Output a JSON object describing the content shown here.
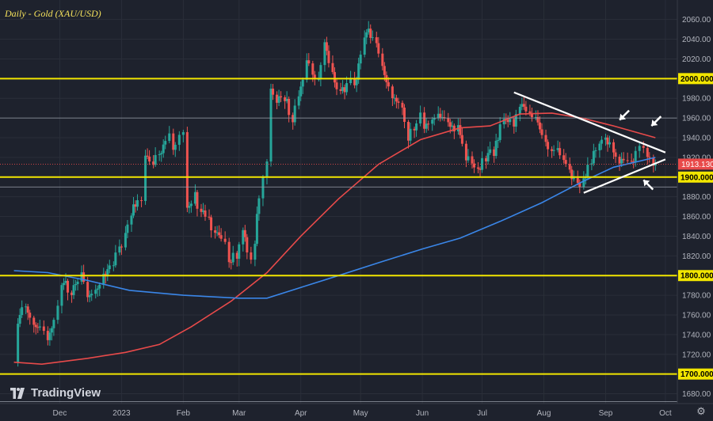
{
  "chart_data": {
    "type": "candlestick",
    "title": "Daily - Gold (XAU/USD)",
    "branding": "TradingView",
    "ylim": [
      1670,
      2075
    ],
    "y_ticks": [
      1680,
      1700,
      1720,
      1740,
      1760,
      1780,
      1800,
      1820,
      1840,
      1860,
      1880,
      1900,
      1920,
      1940,
      1960,
      1980,
      2000,
      2020,
      2040,
      2060
    ],
    "x_labels": [
      {
        "label": "Dec",
        "date": "2022-12-01"
      },
      {
        "label": "2023",
        "date": "2023-01-01"
      },
      {
        "label": "Feb",
        "date": "2023-02-01"
      },
      {
        "label": "Mar",
        "date": "2023-03-01"
      },
      {
        "label": "Apr",
        "date": "2023-04-01"
      },
      {
        "label": "May",
        "date": "2023-05-01"
      },
      {
        "label": "Jun",
        "date": "2023-06-01"
      },
      {
        "label": "Jul",
        "date": "2023-07-01"
      },
      {
        "label": "Aug",
        "date": "2023-08-01"
      },
      {
        "label": "Sep",
        "date": "2023-09-01"
      },
      {
        "label": "Oct",
        "date": "2023-10-01"
      }
    ],
    "price_path": [
      [
        "2022-11-08",
        1712
      ],
      [
        "2022-11-10",
        1750
      ],
      [
        "2022-11-14",
        1772
      ],
      [
        "2022-11-18",
        1755
      ],
      [
        "2022-11-23",
        1742
      ],
      [
        "2022-11-25",
        1735
      ],
      [
        "2022-11-30",
        1768
      ],
      [
        "2022-12-02",
        1795
      ],
      [
        "2022-12-07",
        1785
      ],
      [
        "2022-12-12",
        1800
      ],
      [
        "2022-12-15",
        1778
      ],
      [
        "2022-12-19",
        1785
      ],
      [
        "2022-12-23",
        1800
      ],
      [
        "2022-12-28",
        1812
      ],
      [
        "2023-01-03",
        1840
      ],
      [
        "2023-01-06",
        1865
      ],
      [
        "2023-01-11",
        1878
      ],
      [
        "2023-01-13",
        1920
      ],
      [
        "2023-01-17",
        1910
      ],
      [
        "2023-01-20",
        1925
      ],
      [
        "2023-01-25",
        1940
      ],
      [
        "2023-01-27",
        1928
      ],
      [
        "2023-01-30",
        1945
      ],
      [
        "2023-02-01",
        1950
      ],
      [
        "2023-02-03",
        1868
      ],
      [
        "2023-02-07",
        1880
      ],
      [
        "2023-02-10",
        1865
      ],
      [
        "2023-02-14",
        1855
      ],
      [
        "2023-02-17",
        1845
      ],
      [
        "2023-02-22",
        1830
      ],
      [
        "2023-02-24",
        1815
      ],
      [
        "2023-02-28",
        1822
      ],
      [
        "2023-03-03",
        1850
      ],
      [
        "2023-03-07",
        1815
      ],
      [
        "2023-03-09",
        1835
      ],
      [
        "2023-03-13",
        1905
      ],
      [
        "2023-03-15",
        1920
      ],
      [
        "2023-03-17",
        1990
      ],
      [
        "2023-03-20",
        1978
      ],
      [
        "2023-03-24",
        1982
      ],
      [
        "2023-03-28",
        1960
      ],
      [
        "2023-03-31",
        1980
      ],
      [
        "2023-04-04",
        2015
      ],
      [
        "2023-04-07",
        2008
      ],
      [
        "2023-04-10",
        1995
      ],
      [
        "2023-04-13",
        2040
      ],
      [
        "2023-04-17",
        2002
      ],
      [
        "2023-04-21",
        1985
      ],
      [
        "2023-04-26",
        1995
      ],
      [
        "2023-04-28",
        1990
      ],
      [
        "2023-05-03",
        2038
      ],
      [
        "2023-05-04",
        2050
      ],
      [
        "2023-05-09",
        2035
      ],
      [
        "2023-05-12",
        2012
      ],
      [
        "2023-05-17",
        1985
      ],
      [
        "2023-05-22",
        1975
      ],
      [
        "2023-05-25",
        1942
      ],
      [
        "2023-05-31",
        1962
      ],
      [
        "2023-06-02",
        1948
      ],
      [
        "2023-06-06",
        1962
      ],
      [
        "2023-06-09",
        1960
      ],
      [
        "2023-06-14",
        1955
      ],
      [
        "2023-06-19",
        1950
      ],
      [
        "2023-06-23",
        1920
      ],
      [
        "2023-06-29",
        1908
      ],
      [
        "2023-07-03",
        1920
      ],
      [
        "2023-07-07",
        1925
      ],
      [
        "2023-07-12",
        1958
      ],
      [
        "2023-07-17",
        1955
      ],
      [
        "2023-07-20",
        1975
      ],
      [
        "2023-07-25",
        1962
      ],
      [
        "2023-07-28",
        1958
      ],
      [
        "2023-08-02",
        1935
      ],
      [
        "2023-08-08",
        1925
      ],
      [
        "2023-08-14",
        1905
      ],
      [
        "2023-08-18",
        1890
      ],
      [
        "2023-08-21",
        1895
      ],
      [
        "2023-08-25",
        1915
      ],
      [
        "2023-08-29",
        1938
      ],
      [
        "2023-09-01",
        1942
      ],
      [
        "2023-09-05",
        1928
      ],
      [
        "2023-09-08",
        1918
      ],
      [
        "2023-09-12",
        1912
      ],
      [
        "2023-09-14",
        1912
      ],
      [
        "2023-09-18",
        1935
      ],
      [
        "2023-09-20",
        1930
      ],
      [
        "2023-09-22",
        1925
      ],
      [
        "2023-09-25",
        1915
      ],
      [
        "2023-09-26",
        1913.13
      ]
    ],
    "moving_averages": [
      {
        "color": "#e84a4a",
        "points": [
          [
            "2022-11-08",
            1712
          ],
          [
            "2022-11-22",
            1710
          ],
          [
            "2022-12-15",
            1716
          ],
          [
            "2023-01-03",
            1722
          ],
          [
            "2023-01-20",
            1730
          ],
          [
            "2023-02-05",
            1748
          ],
          [
            "2023-02-25",
            1774
          ],
          [
            "2023-03-15",
            1803
          ],
          [
            "2023-04-01",
            1840
          ],
          [
            "2023-04-20",
            1878
          ],
          [
            "2023-05-10",
            1913
          ],
          [
            "2023-05-31",
            1938
          ],
          [
            "2023-06-20",
            1950
          ],
          [
            "2023-07-05",
            1952
          ],
          [
            "2023-07-20",
            1964
          ],
          [
            "2023-08-05",
            1965
          ],
          [
            "2023-08-20",
            1960
          ],
          [
            "2023-09-05",
            1952
          ],
          [
            "2023-09-26",
            1940
          ]
        ]
      },
      {
        "color": "#3a86e8",
        "points": [
          [
            "2022-11-08",
            1805
          ],
          [
            "2022-11-25",
            1803
          ],
          [
            "2022-12-15",
            1795
          ],
          [
            "2023-01-05",
            1785
          ],
          [
            "2023-02-01",
            1780
          ],
          [
            "2023-03-01",
            1777
          ],
          [
            "2023-03-15",
            1777
          ],
          [
            "2023-04-01",
            1788
          ],
          [
            "2023-04-20",
            1800
          ],
          [
            "2023-05-10",
            1813
          ],
          [
            "2023-06-01",
            1827
          ],
          [
            "2023-06-20",
            1838
          ],
          [
            "2023-07-10",
            1855
          ],
          [
            "2023-07-31",
            1874
          ],
          [
            "2023-08-20",
            1895
          ],
          [
            "2023-09-05",
            1910
          ],
          [
            "2023-09-26",
            1920
          ]
        ]
      }
    ],
    "horizontal_levels": [
      {
        "value": 2000,
        "label": "2000.000",
        "color": "#f2e600",
        "style": "solid"
      },
      {
        "value": 1900,
        "label": "1900.000",
        "color": "#f2e600",
        "style": "solid"
      },
      {
        "value": 1800,
        "label": "1800.000",
        "color": "#f2e600",
        "style": "solid"
      },
      {
        "value": 1700,
        "label": "1700.000",
        "color": "#f2e600",
        "style": "solid"
      },
      {
        "value": 1960,
        "label": "",
        "color": "#9aa0ab",
        "style": "thin"
      },
      {
        "value": 1890,
        "label": "",
        "color": "#9aa0ab",
        "style": "thin"
      },
      {
        "value": 1672,
        "label": "",
        "color": "#9aa0ab",
        "style": "thin"
      }
    ],
    "current_price": {
      "value": 1913.13,
      "label": "1913.130",
      "color": "#e84a4a"
    },
    "trendlines": [
      {
        "from": [
          "2023-07-17",
          1986
        ],
        "to": [
          "2023-10-01",
          1925
        ],
        "color": "#ffffff"
      },
      {
        "from": [
          "2023-08-21",
          1884
        ],
        "to": [
          "2023-10-01",
          1918
        ],
        "color": "#ffffff"
      }
    ],
    "annotations": [
      {
        "type": "arrow",
        "at": [
          "2023-09-08",
          1958
        ],
        "pointing": "down-left"
      },
      {
        "type": "arrow",
        "at": [
          "2023-09-24",
          1952
        ],
        "pointing": "down-left"
      },
      {
        "type": "arrow",
        "at": [
          "2023-09-20",
          1897
        ],
        "pointing": "up-left"
      }
    ],
    "grid": true,
    "colors": {
      "background": "#1e222d",
      "up": "#26a69a",
      "down": "#ef5350",
      "axis_text": "#b2b5be"
    }
  }
}
